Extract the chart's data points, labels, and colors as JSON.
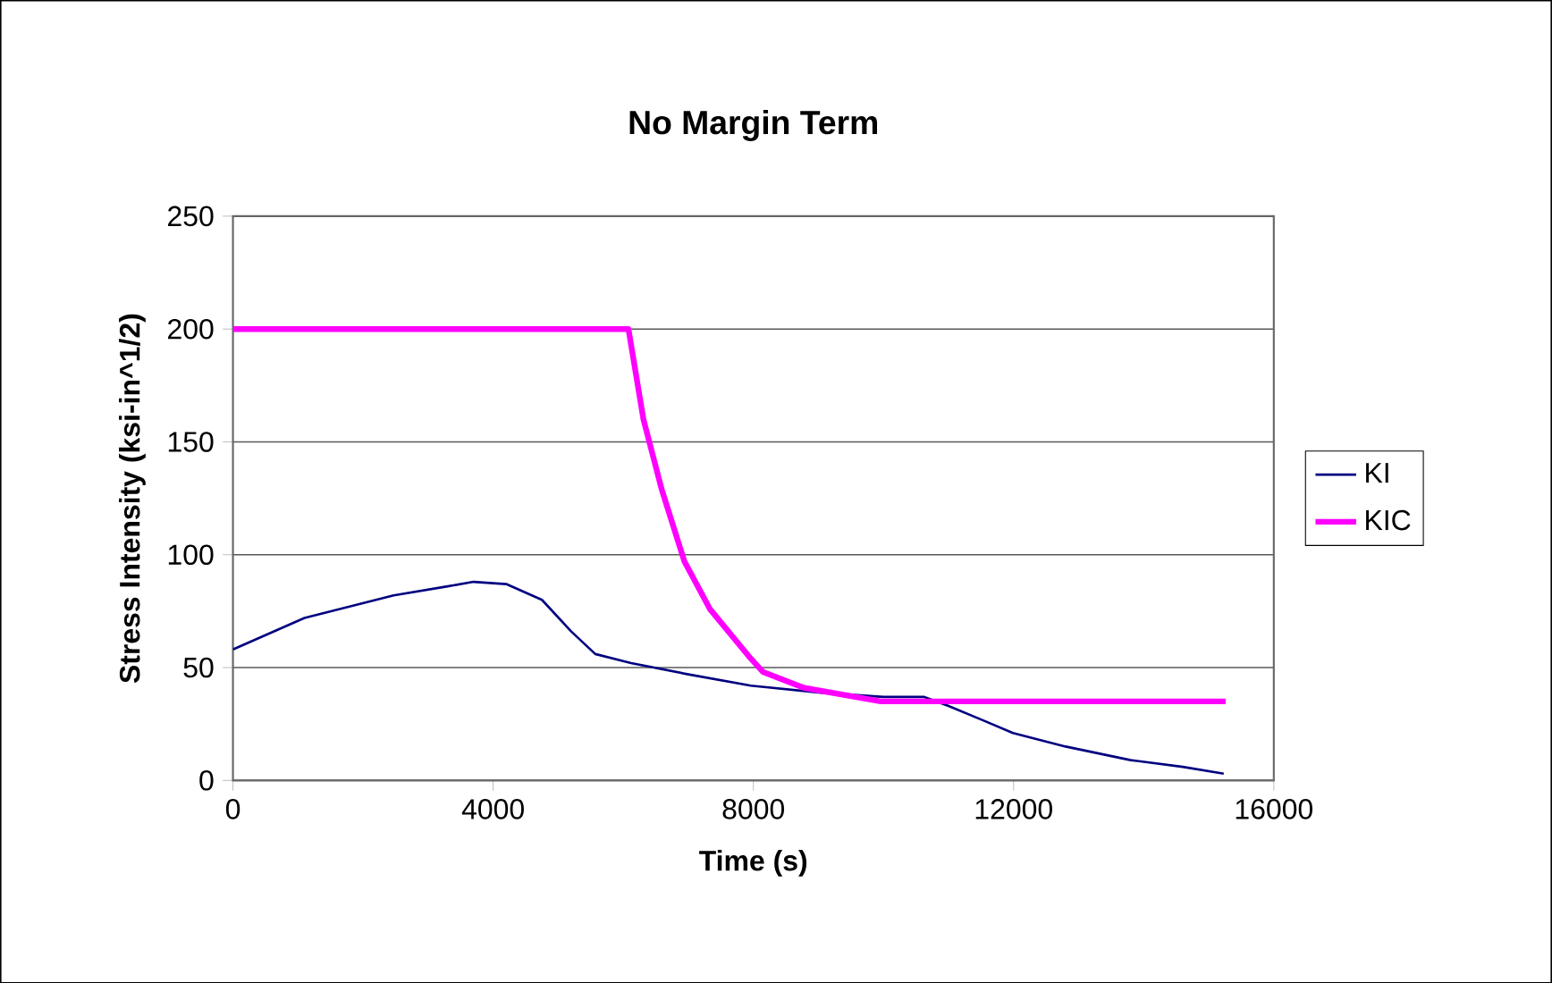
{
  "chart_data": {
    "type": "line",
    "title": "No Margin Term",
    "xlabel": "Time (s)",
    "ylabel": "Stress Intensity (ksi-in^1/2)",
    "xlim": [
      0,
      16000
    ],
    "xticks": [
      0,
      4000,
      8000,
      12000,
      16000
    ],
    "ylim": [
      0,
      250
    ],
    "yticks": [
      0,
      50,
      100,
      150,
      200,
      250
    ],
    "grid": "y",
    "legend": "right",
    "marker": "none",
    "series": [
      {
        "name": "KI",
        "color": "#000080",
        "x": [
          0,
          1100,
          2470,
          3300,
          3700,
          4200,
          4750,
          5200,
          5570,
          6120,
          7000,
          7960,
          9000,
          10000,
          10620,
          11000,
          11500,
          11990,
          12800,
          13800,
          14600,
          15230
        ],
        "values": [
          58,
          72,
          82,
          86,
          88,
          87,
          80,
          66,
          56,
          52,
          47,
          42,
          39,
          37,
          37,
          33,
          27,
          21,
          15,
          9,
          6,
          3
        ]
      },
      {
        "name": "KIC",
        "color": "#ff00ff",
        "x": [
          0,
          6080,
          6310,
          6590,
          6940,
          7330,
          7960,
          8150,
          8780,
          9960,
          15260
        ],
        "values": [
          200,
          200,
          160,
          129,
          97,
          76,
          54,
          48,
          41,
          35,
          35
        ]
      }
    ]
  }
}
